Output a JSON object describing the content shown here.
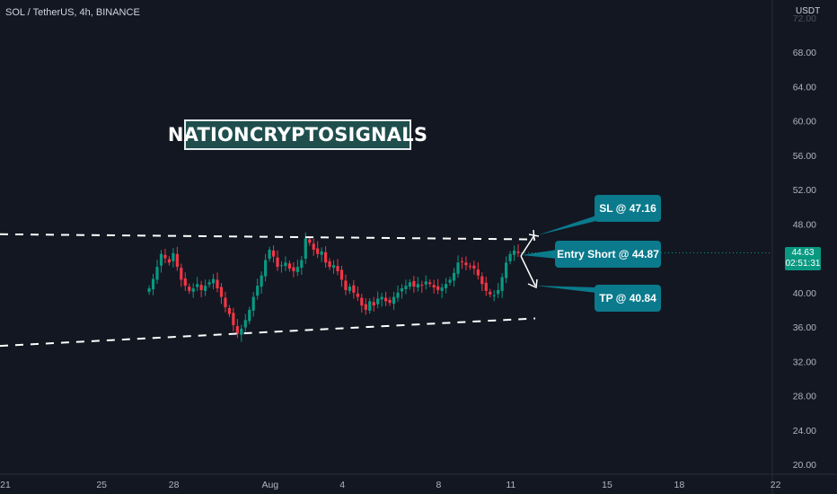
{
  "header": {
    "title": "SOL / TetherUS, 4h, BINANCE"
  },
  "axis_unit": "USDT",
  "watermark": "NATIONCRYPTOSIGNALS",
  "colors": {
    "background": "#131722",
    "up": "#089981",
    "down": "#f23645",
    "callout": "#0a7a8c",
    "text": "#b2b5be",
    "trendline": "#ffffff"
  },
  "callouts": {
    "sl": "SL @ 47.16",
    "entry": "Entry Short @ 44.87",
    "tp": "TP @ 40.84"
  },
  "last_price": {
    "value": "44.63",
    "countdown": "02:51:31"
  },
  "chart_data": {
    "type": "candlestick",
    "title": "SOL / TetherUS, 4h, BINANCE",
    "y_unit": "USDT",
    "ylim": [
      19,
      73
    ],
    "y_ticks": [
      "20.00",
      "24.00",
      "28.00",
      "32.00",
      "36.00",
      "40.00",
      "44.00",
      "48.00",
      "52.00",
      "56.00",
      "60.00",
      "64.00",
      "68.00"
    ],
    "x_ticks": [
      {
        "label": "21",
        "day": 0
      },
      {
        "label": "25",
        "day": 4
      },
      {
        "label": "28",
        "day": 7
      },
      {
        "label": "Aug",
        "day": 11
      },
      {
        "label": "4",
        "day": 14
      },
      {
        "label": "8",
        "day": 18
      },
      {
        "label": "11",
        "day": 21
      },
      {
        "label": "15",
        "day": 25
      },
      {
        "label": "18",
        "day": 28
      },
      {
        "label": "22",
        "day": 32
      }
    ],
    "candles_per_day": 6,
    "close_path": [
      40.5,
      41.6,
      43.0,
      44.5,
      44.0,
      43.5,
      44.6,
      43.0,
      41.5,
      40.8,
      40.2,
      40.5,
      41.0,
      40.3,
      40.8,
      41.2,
      41.6,
      40.5,
      39.5,
      38.3,
      37.5,
      36.2,
      35.2,
      35.8,
      36.8,
      38.0,
      39.5,
      40.8,
      42.0,
      43.8,
      45.0,
      44.2,
      43.0,
      43.2,
      43.5,
      42.8,
      42.5,
      43.0,
      43.8,
      46.3,
      45.8,
      45.0,
      44.5,
      44.8,
      43.5,
      43.0,
      43.2,
      42.5,
      41.5,
      40.3,
      40.7,
      40.0,
      39.5,
      38.5,
      38.0,
      39.0,
      38.5,
      39.3,
      39.5,
      39.0,
      38.8,
      39.5,
      40.0,
      40.5,
      40.8,
      41.2,
      40.7,
      41.0,
      40.8,
      41.3,
      41.0,
      40.6,
      40.3,
      40.6,
      41.0,
      41.5,
      42.3,
      43.5,
      43.6,
      43.2,
      43.0,
      42.8,
      42.0,
      41.0,
      40.2,
      39.8,
      39.7,
      40.3,
      41.8,
      43.5,
      44.5,
      44.9,
      44.63
    ],
    "trend_upper": {
      "y_start": 46.8,
      "y_end": 46.2
    },
    "trend_lower": {
      "y_start": 33.8,
      "y_end": 37.0
    },
    "levels": {
      "sl": 47.16,
      "entry": 44.87,
      "tp": 40.84
    }
  }
}
